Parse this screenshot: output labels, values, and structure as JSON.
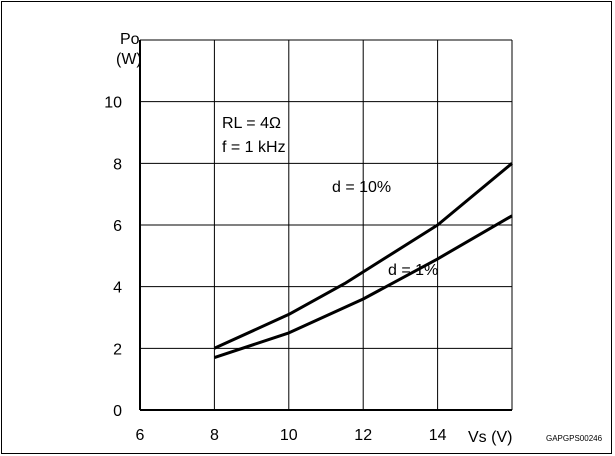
{
  "chart_data": {
    "type": "line",
    "title": "",
    "xlabel": "Vs (V)",
    "ylabel_line1": "Po",
    "ylabel_line2": "(W)",
    "xlim": [
      6,
      16
    ],
    "ylim": [
      0,
      12
    ],
    "x_ticks": [
      6,
      8,
      10,
      12,
      14
    ],
    "y_ticks": [
      0,
      2,
      4,
      6,
      8,
      10
    ],
    "grid": true,
    "conditions": [
      "RL = 4Ω",
      "f = 1 kHz"
    ],
    "figure_code": "GAPGPS00246",
    "series": [
      {
        "name": "d = 10%",
        "x": [
          8,
          10,
          11.5,
          14,
          16
        ],
        "y": [
          2.0,
          3.1,
          4.1,
          6.0,
          8.0
        ]
      },
      {
        "name": "d = 1%",
        "x": [
          8,
          10,
          12,
          14,
          16
        ],
        "y": [
          1.7,
          2.5,
          3.6,
          4.9,
          6.3
        ]
      }
    ]
  }
}
